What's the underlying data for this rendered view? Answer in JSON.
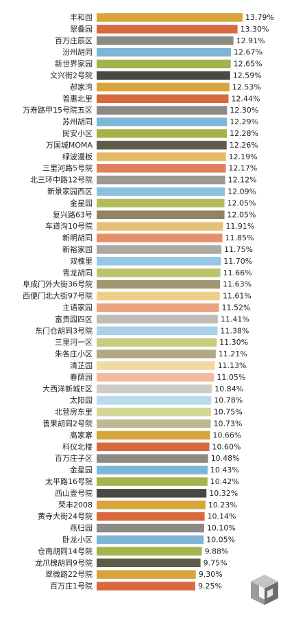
{
  "chart_data": {
    "type": "bar",
    "orientation": "horizontal",
    "value_suffix": "%",
    "categories": [
      "丰和园",
      "翠叠园",
      "百万庄辰区",
      "汾州胡同",
      "新世界家园",
      "文兴街2号院",
      "郝家湾",
      "普惠北里",
      "万寿路甲15号院五区",
      "苏州胡同",
      "民安小区",
      "万国城MOMA",
      "绿波漫板",
      "三里河路5号院",
      "北三环中路12号院",
      "新景家园西区",
      "金星园",
      "复兴路63号",
      "车道沟10号院",
      "新明胡同",
      "新裕家园",
      "双槐里",
      "青龙胡同",
      "阜成门外大街36号院",
      "西便门北大街97号院",
      "主语家园",
      "富贵园四区",
      "东门仓胡同3号院",
      "三里河一区",
      "朱各庄小区",
      "清芷园",
      "春荫园",
      "大西洋新城E区",
      "太阳园",
      "北营房东里",
      "善果胡同2号院",
      "高家寨",
      "科仪北楼",
      "百万庄子区",
      "金星园",
      "太平路16号院",
      "西山壹号院",
      "荣丰2008",
      "黄寺大街24号院",
      "燕归园",
      "卧龙小区",
      "仓南胡同14号院",
      "龙爪槐胡同9号院",
      "翠微路22号院",
      "百万庄1号院"
    ],
    "value_labels": [
      "13.79%",
      "13.30%",
      "12.91%",
      "12.67%",
      "12.65%",
      "12.59%",
      "12.53%",
      "12.44%",
      "12.30%",
      "12.29%",
      "12.28%",
      "12.26%",
      "12.19%",
      "12.17%",
      "12.12%",
      "12.09%",
      "12.05%",
      "12.05%",
      "11.91%",
      "11.85%",
      "11.75%",
      "11.70%",
      "11.66%",
      "11.63%",
      "11.61%",
      "11.52%",
      "11.41%",
      "11.38%",
      "11.30%",
      "11.21%",
      "11.13%",
      "11.05%",
      "10.84%",
      "10.78%",
      "10.75%",
      "10.73%",
      "10.66%",
      "10.60%",
      "10.48%",
      "10.43%",
      "10.42%",
      "10.32%",
      "10.23%",
      "10.14%",
      "10.10%",
      "10.05%",
      "9.88%",
      "9.75%",
      "9.30%",
      "9.25%"
    ],
    "values": [
      13.79,
      13.3,
      12.91,
      12.67,
      12.65,
      12.59,
      12.53,
      12.44,
      12.3,
      12.29,
      12.28,
      12.26,
      12.19,
      12.17,
      12.12,
      12.09,
      12.05,
      12.05,
      11.91,
      11.85,
      11.75,
      11.7,
      11.66,
      11.63,
      11.61,
      11.52,
      11.41,
      11.38,
      11.3,
      11.21,
      11.13,
      11.05,
      10.84,
      10.78,
      10.75,
      10.73,
      10.66,
      10.6,
      10.48,
      10.43,
      10.42,
      10.32,
      10.23,
      10.14,
      10.1,
      10.05,
      9.88,
      9.75,
      9.3,
      9.25
    ],
    "bar_colors": [
      "#d9a43a",
      "#d8693f",
      "#8b8a84",
      "#7fb5d6",
      "#a6b34a",
      "#4a4843",
      "#d9a43a",
      "#d8693f",
      "#8b8a84",
      "#7fb5d6",
      "#a6b34a",
      "#5f5b4a",
      "#e4b865",
      "#e0805a",
      "#9a9890",
      "#8cc0df",
      "#b0bb5c",
      "#8f8660",
      "#e6c076",
      "#e68f68",
      "#aaa9a2",
      "#98c7e3",
      "#bcc46b",
      "#a19873",
      "#ecd08a",
      "#eca27d",
      "#bdbcb5",
      "#a9d1e9",
      "#c6cd80",
      "#b0a783",
      "#f0daa0",
      "#f2bb9e",
      "#cccbc4",
      "#b9dbee",
      "#d3d897",
      "#bfb794",
      "#d9a43a",
      "#d8693f",
      "#8b8a84",
      "#7fb5d6",
      "#a6b34a",
      "#4a4843",
      "#d9a43a",
      "#d8693f",
      "#8b8a84",
      "#7fb5d6",
      "#a6b34a",
      "#5f5b4a",
      "#d9a43a",
      "#d8693f"
    ],
    "grid": false,
    "legend": "none"
  }
}
